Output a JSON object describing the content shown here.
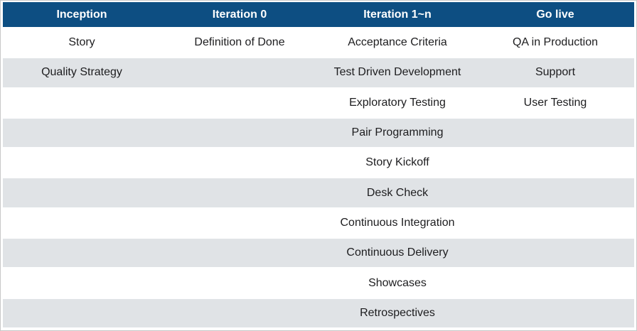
{
  "chart_data": {
    "type": "table",
    "columns": [
      "Inception",
      "Iteration 0",
      "Iteration 1~n",
      "Go live"
    ],
    "rows": [
      [
        "Story",
        "Definition of Done",
        "Acceptance Criteria",
        "QA in Production"
      ],
      [
        "Quality Strategy",
        "",
        "Test Driven Development",
        "Support"
      ],
      [
        "",
        "",
        "Exploratory Testing",
        "User Testing"
      ],
      [
        "",
        "",
        "Pair Programming",
        ""
      ],
      [
        "",
        "",
        "Story Kickoff",
        ""
      ],
      [
        "",
        "",
        "Desk Check",
        ""
      ],
      [
        "",
        "",
        "Continuous Integration",
        ""
      ],
      [
        "",
        "",
        "Continuous Delivery",
        ""
      ],
      [
        "",
        "",
        "Showcases",
        ""
      ],
      [
        "",
        "",
        "Retrospectives",
        ""
      ]
    ],
    "layout": {
      "header_row": true,
      "zebra_striping": true,
      "column_alignment": "center"
    }
  },
  "colors": {
    "header_bg": "#0d4e82",
    "header_text": "#ffffff",
    "row_bg": "#ffffff",
    "row_alt_bg": "#e0e3e6",
    "body_text": "#1d1d1f",
    "frame_border": "#c8c8c8",
    "separator": "#ffffff"
  }
}
